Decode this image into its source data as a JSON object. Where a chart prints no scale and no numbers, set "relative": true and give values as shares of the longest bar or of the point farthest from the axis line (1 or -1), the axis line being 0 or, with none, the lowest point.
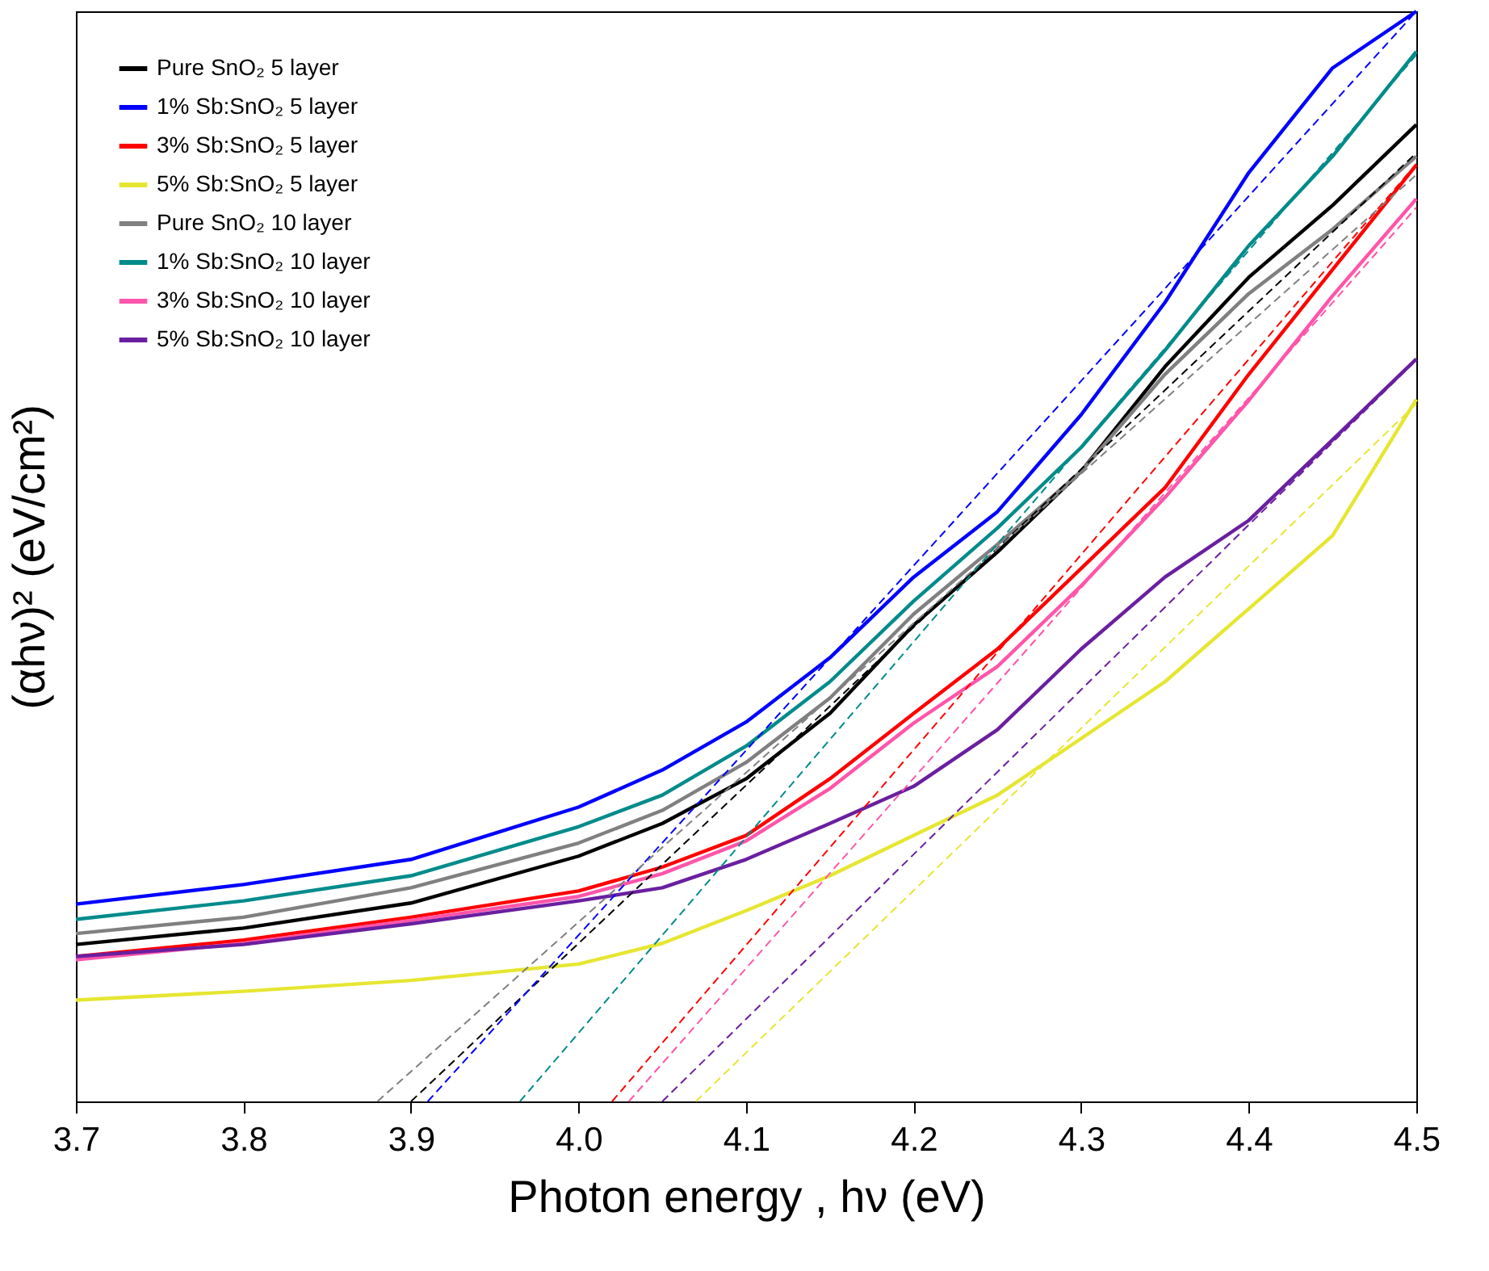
{
  "chart_data": {
    "type": "line",
    "relative": true,
    "xlabel": "Photon energy , hν (eV)",
    "ylabel": "(αhν)² (eV/cm²)",
    "xlim": [
      3.7,
      4.5
    ],
    "xticks": [
      3.7,
      3.8,
      3.9,
      {
        "value": 4,
        "label": "4.0"
      },
      4.1,
      4.2,
      4.3,
      4.4,
      4.5
    ],
    "legend": "top left",
    "x": [
      3.7,
      3.8,
      3.9,
      4.0,
      4.05,
      4.1,
      4.15,
      4.2,
      4.25,
      4.3,
      4.35,
      4.4,
      4.45,
      4.5
    ],
    "series": [
      {
        "name": "Pure SnO₂ 5 layer",
        "color": "#000000",
        "values": [
          0.144,
          0.159,
          0.182,
          0.225,
          0.255,
          0.296,
          0.356,
          0.437,
          0.504,
          0.578,
          0.674,
          0.756,
          0.822,
          0.896
        ]
      },
      {
        "name": "1% Sb:SnO₂ 5 layer",
        "color": "#0000ff",
        "values": [
          0.181,
          0.199,
          0.222,
          0.27,
          0.304,
          0.348,
          0.407,
          0.481,
          0.541,
          0.63,
          0.733,
          0.852,
          0.948,
          1.0
        ]
      },
      {
        "name": "3% Sb:SnO₂ 5 layer",
        "color": "#ff0000",
        "values": [
          0.133,
          0.148,
          0.169,
          0.193,
          0.215,
          0.244,
          0.296,
          0.356,
          0.415,
          0.489,
          0.563,
          0.667,
          0.763,
          0.859
        ]
      },
      {
        "name": "5% Sb:SnO₂ 5 layer",
        "color": "#e6e632",
        "values": [
          0.093,
          0.101,
          0.111,
          0.126,
          0.145,
          0.175,
          0.207,
          0.244,
          0.281,
          0.333,
          0.385,
          0.452,
          0.519,
          0.644
        ]
      },
      {
        "name": "Pure SnO₂ 10 layer",
        "color": "#808080",
        "values": [
          0.154,
          0.169,
          0.196,
          0.237,
          0.267,
          0.311,
          0.37,
          0.447,
          0.511,
          0.578,
          0.667,
          0.741,
          0.8,
          0.867
        ]
      },
      {
        "name": "1% Sb:SnO₂ 10 layer",
        "color": "#008b8b",
        "values": [
          0.167,
          0.184,
          0.207,
          0.252,
          0.281,
          0.326,
          0.385,
          0.459,
          0.526,
          0.6,
          0.689,
          0.785,
          0.867,
          0.963
        ]
      },
      {
        "name": "3% Sb:SnO₂ 10 layer",
        "color": "#ff55aa",
        "values": [
          0.13,
          0.145,
          0.166,
          0.188,
          0.209,
          0.239,
          0.287,
          0.347,
          0.399,
          0.473,
          0.554,
          0.643,
          0.739,
          0.828
        ]
      },
      {
        "name": "5% Sb:SnO₂ 10 layer",
        "color": "#6a1fa0",
        "values": [
          0.133,
          0.144,
          0.163,
          0.184,
          0.196,
          0.222,
          0.255,
          0.289,
          0.341,
          0.415,
          0.481,
          0.533,
          0.607,
          0.681
        ]
      },
      {
        "type": "line",
        "line_style": "dashed",
        "color": "#000000",
        "x": [
          3.9,
          4.5
        ],
        "values": [
          0,
          0.87
        ]
      },
      {
        "type": "line",
        "line_style": "dashed",
        "color": "#0000ff",
        "x": [
          3.91,
          4.5
        ],
        "values": [
          0,
          1.0
        ]
      },
      {
        "type": "line",
        "line_style": "dashed",
        "color": "#ff0000",
        "x": [
          4.02,
          4.5
        ],
        "values": [
          0,
          0.86
        ]
      },
      {
        "type": "line",
        "line_style": "dashed",
        "color": "#e6e632",
        "x": [
          4.07,
          4.5
        ],
        "values": [
          0,
          0.64
        ]
      },
      {
        "type": "line",
        "line_style": "dashed",
        "color": "#808080",
        "x": [
          3.88,
          4.5
        ],
        "values": [
          0,
          0.85
        ]
      },
      {
        "type": "line",
        "line_style": "dashed",
        "color": "#008b8b",
        "x": [
          3.965,
          4.5
        ],
        "values": [
          0,
          0.96
        ]
      },
      {
        "type": "line",
        "line_style": "dashed",
        "color": "#ff55aa",
        "x": [
          4.03,
          4.5
        ],
        "values": [
          0,
          0.82
        ]
      },
      {
        "type": "line",
        "line_style": "dashed",
        "color": "#6a1fa0",
        "x": [
          4.05,
          4.5
        ],
        "values": [
          0,
          0.68
        ]
      }
    ]
  }
}
